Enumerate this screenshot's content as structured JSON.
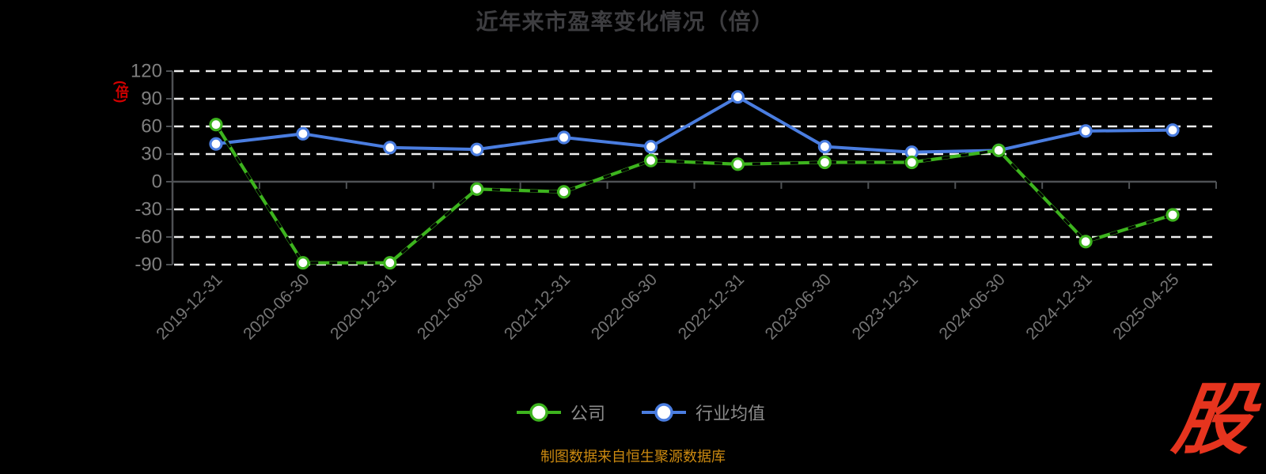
{
  "chart_data": {
    "type": "line",
    "title": "近年来市盈率变化情况（倍）",
    "categories": [
      "2019-12-31",
      "2020-06-30",
      "2020-12-31",
      "2021-06-30",
      "2021-12-31",
      "2022-06-30",
      "2022-12-31",
      "2023-06-30",
      "2023-12-31",
      "2024-06-30",
      "2024-12-31",
      "2025-04-25"
    ],
    "series": [
      {
        "name": "公司",
        "color": "#3db41e",
        "marker": "circle-white-fill",
        "values": [
          62,
          -88,
          -88,
          -8,
          -11,
          23,
          19,
          21,
          21,
          34,
          -65,
          -36
        ]
      },
      {
        "name": "行业均值",
        "color": "#4a7de0",
        "marker": "circle-white-fill",
        "values": [
          41,
          52,
          37,
          35,
          48,
          38,
          92,
          38,
          32,
          34,
          55,
          56
        ]
      }
    ],
    "xlabel": "",
    "ylabel": "(倍)",
    "ylim": [
      -90,
      120
    ],
    "y_ticks": [
      120,
      90,
      60,
      30,
      0,
      -30,
      -60,
      -90
    ],
    "grid": "horizontal-dashed-white",
    "legend_position": "bottom-center",
    "background": "#000000"
  },
  "y_axis": {
    "unit_label": "(倍)",
    "unit_label_color": "#d40000"
  },
  "footer": {
    "source_note": "制图数据来自恒生聚源数据库",
    "source_note_color": "#cc8a10"
  },
  "watermark": {
    "text": "股",
    "color": "#e6341e"
  }
}
